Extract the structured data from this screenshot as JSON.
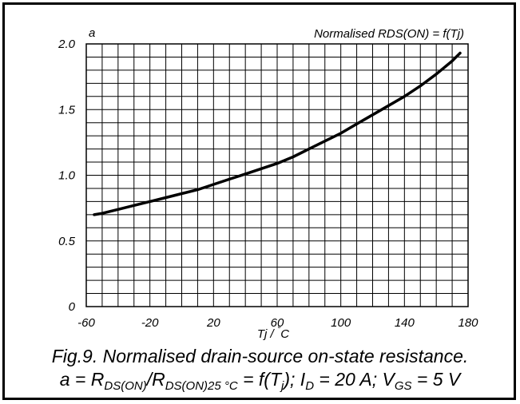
{
  "chart_data": {
    "type": "line",
    "title": "Normalised RDS(ON) = f(Tj)",
    "ylabel": "a",
    "xlabel": "Tj / °C",
    "xlabel_main": "Tj / ",
    "xlabel_degree": "°",
    "xlabel_unit": "C",
    "xlim": [
      -60,
      180
    ],
    "ylim": [
      0,
      2.0
    ],
    "x_ticks": [
      -60,
      -20,
      20,
      60,
      100,
      140,
      180
    ],
    "x_tick_labels": [
      "-60",
      "-20",
      "20",
      "60",
      "100",
      "140",
      "180"
    ],
    "y_ticks": [
      0,
      0.5,
      1.0,
      1.5,
      2.0
    ],
    "y_tick_labels": [
      "0",
      "0.5",
      "1.0",
      "1.5",
      "2.0"
    ],
    "x_grid_step": 10,
    "y_grid_step": 0.1,
    "grid": true,
    "series": [
      {
        "x": [
          -55,
          -50,
          -40,
          -30,
          -20,
          -10,
          0,
          10,
          20,
          30,
          40,
          50,
          60,
          70,
          80,
          90,
          100,
          110,
          120,
          130,
          140,
          150,
          160,
          170,
          175
        ],
        "y": [
          0.7,
          0.71,
          0.74,
          0.77,
          0.8,
          0.83,
          0.86,
          0.89,
          0.93,
          0.97,
          1.01,
          1.05,
          1.09,
          1.14,
          1.2,
          1.26,
          1.32,
          1.39,
          1.46,
          1.53,
          1.6,
          1.68,
          1.77,
          1.87,
          1.93
        ]
      }
    ]
  },
  "caption": {
    "line1": "Fig.9.   Normalised drain-source on-state resistance.",
    "line2": {
      "a_eq": "a = R",
      "sub1": "DS(ON)",
      "slash_r": "/R",
      "sub2": "DS(ON)25 °C",
      "eq_f": " = f(T",
      "sub3": "j",
      "id_text": "); I",
      "sub4": "D",
      "id_val": " = 20 A; V",
      "sub5": "GS",
      "vgs_val": " = 5 V"
    }
  }
}
